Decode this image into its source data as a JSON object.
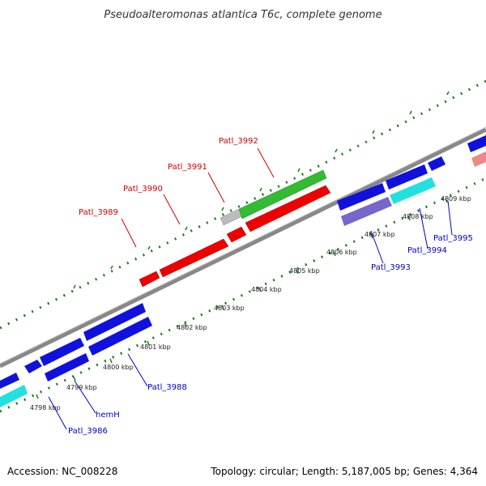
{
  "title": "Pseudoalteromonas atlantica T6c, complete genome",
  "footer": {
    "accession": "Accession: NC_008228",
    "summary": "Topology: circular; Length: 5,187,005 bp; Genes: 4,364"
  },
  "colors": {
    "backbone": "#888888",
    "gc_ticks": "#1a7a1a",
    "forward_strand_label": "#cc0000",
    "reverse_strand_label": "#0000cc",
    "gene_red": "#ee0000",
    "gene_green": "#33bb33",
    "gene_grey": "#bbbbbb",
    "gene_blue": "#1111dd",
    "gene_cyan": "#22e0e0",
    "gene_slate": "#7766cc",
    "gene_pink": "#ee8888"
  },
  "tick_labels": [
    "4798 kbp",
    "4799 kbp",
    "4800 kbp",
    "4801 kbp",
    "4802 kbp",
    "4803 kbp",
    "4804 kbp",
    "4805 kbp",
    "4806 kbp",
    "4807 kbp",
    "4808 kbp",
    "4809 kbp"
  ],
  "genes": {
    "patl_3986": "Patl_3986",
    "hemH": "hemH",
    "patl_3988": "Patl_3988",
    "patl_3989": "Patl_3989",
    "patl_3990": "Patl_3990",
    "patl_3991": "Patl_3991",
    "patl_3992": "Patl_3992",
    "patl_3993": "Patl_3993",
    "patl_3994": "Patl_3994",
    "patl_3995": "Patl_3995"
  }
}
